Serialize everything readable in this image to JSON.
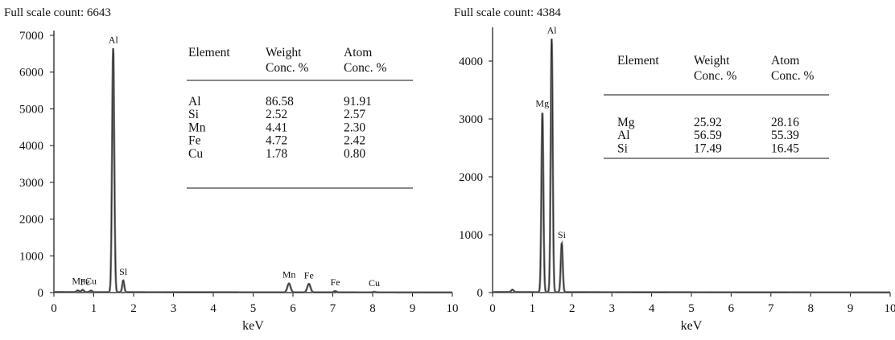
{
  "chart_data": [
    {
      "type": "line",
      "title": "Full scale count: 6643",
      "xlabel": "keV",
      "ylabel": "",
      "xlim": [
        0,
        10
      ],
      "ylim": [
        0,
        7000
      ],
      "xticks": [
        "0",
        "1",
        "2",
        "3",
        "4",
        "5",
        "6",
        "7",
        "8",
        "9",
        "10"
      ],
      "yticks": [
        "0",
        "1000",
        "2000",
        "3000",
        "4000",
        "5000",
        "6000",
        "7000"
      ],
      "grid": false,
      "peak_labels": [
        {
          "text": "Al",
          "x": 1.49,
          "y": 6643
        },
        {
          "text": "Mn",
          "x": 0.62,
          "y": 80
        },
        {
          "text": "Cu",
          "x": 0.93,
          "y": 80
        },
        {
          "text": "Fe",
          "x": 0.78,
          "y": 60
        },
        {
          "text": "Sl",
          "x": 1.74,
          "y": 330
        },
        {
          "text": "Mn",
          "x": 5.9,
          "y": 250
        },
        {
          "text": "Fe",
          "x": 6.4,
          "y": 230
        },
        {
          "text": "Fe",
          "x": 7.06,
          "y": 40
        },
        {
          "text": "Cu",
          "x": 8.04,
          "y": 20
        }
      ],
      "spectrum": {
        "baseline": 15,
        "peaks": [
          {
            "x": 0.6,
            "height": 45,
            "width": 0.06
          },
          {
            "x": 0.72,
            "height": 60,
            "width": 0.06
          },
          {
            "x": 0.93,
            "height": 40,
            "width": 0.06
          },
          {
            "x": 1.487,
            "height": 6643,
            "width": 0.055
          },
          {
            "x": 1.74,
            "height": 320,
            "width": 0.05
          },
          {
            "x": 5.9,
            "height": 240,
            "width": 0.08
          },
          {
            "x": 6.4,
            "height": 230,
            "width": 0.08
          },
          {
            "x": 7.06,
            "height": 35,
            "width": 0.07
          },
          {
            "x": 8.04,
            "height": 15,
            "width": 0.07
          }
        ]
      },
      "table": {
        "headers": [
          [
            "Element"
          ],
          [
            "Weight",
            "Conc. %"
          ],
          [
            "Atom",
            "Conc. %"
          ]
        ],
        "rows": [
          [
            "Al",
            "86.58",
            "91.91"
          ],
          [
            "Si",
            "2.52",
            "2.57"
          ],
          [
            "Mn",
            "4.41",
            "2.30"
          ],
          [
            "Fe",
            "4.72",
            "2.42"
          ],
          [
            "Cu",
            "1.78",
            "0.80"
          ]
        ]
      }
    },
    {
      "type": "line",
      "title": "Full scale count: 4384",
      "xlabel": "keV",
      "ylabel": "",
      "xlim": [
        0,
        10
      ],
      "ylim": [
        0,
        4500
      ],
      "xticks": [
        "0",
        "1",
        "2",
        "3",
        "4",
        "5",
        "6",
        "7",
        "8",
        "9",
        "10"
      ],
      "yticks": [
        "0",
        "1000",
        "2000",
        "3000",
        "4000"
      ],
      "grid": false,
      "peak_labels": [
        {
          "text": "Al",
          "x": 1.49,
          "y": 4384
        },
        {
          "text": "Mg",
          "x": 1.25,
          "y": 3120
        },
        {
          "text": "Si",
          "x": 1.74,
          "y": 850
        }
      ],
      "spectrum": {
        "baseline": 10,
        "peaks": [
          {
            "x": 0.5,
            "height": 40,
            "width": 0.06
          },
          {
            "x": 1.253,
            "height": 3120,
            "width": 0.05
          },
          {
            "x": 1.487,
            "height": 4384,
            "width": 0.05
          },
          {
            "x": 1.74,
            "height": 850,
            "width": 0.05
          }
        ]
      },
      "table": {
        "headers": [
          [
            "Element"
          ],
          [
            "Weight",
            "Conc. %"
          ],
          [
            "Atom",
            "Conc. %"
          ]
        ],
        "rows": [
          [
            "Mg",
            "25.92",
            "28.16"
          ],
          [
            "Al",
            "56.59",
            "55.39"
          ],
          [
            "Si",
            "17.49",
            "16.45"
          ]
        ]
      }
    }
  ]
}
